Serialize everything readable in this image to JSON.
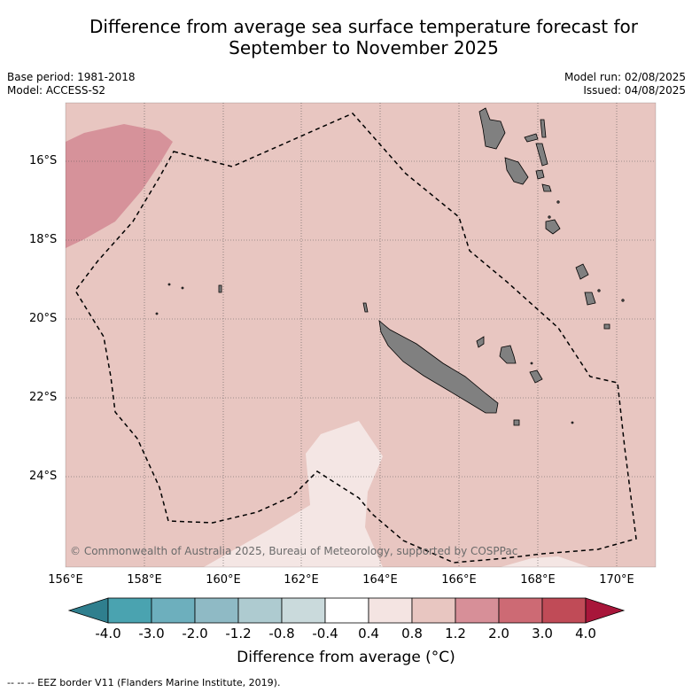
{
  "title_line1": "Difference from average sea surface temperature forecast for",
  "title_line2": "September to November 2025",
  "meta": {
    "base_period": "Base period: 1981-2018",
    "model": "Model: ACCESS-S2",
    "model_run": "Model run: 02/08/2025",
    "issued": "Issued: 04/08/2025"
  },
  "map": {
    "lat_labels": [
      "16°S",
      "18°S",
      "20°S",
      "22°S",
      "24°S"
    ],
    "lon_labels": [
      "156°E",
      "158°E",
      "160°E",
      "162°E",
      "164°E",
      "166°E",
      "168°E",
      "170°E"
    ],
    "copyright": "© Commonwealth of Australia 2025, Bureau of Meteorology, supported by COSPPac",
    "background_anomaly_color": "#e8c6c1",
    "land_color": "#808080",
    "eez_line_style": "dashed black"
  },
  "colorbar": {
    "labels": [
      "-4.0",
      "-3.0",
      "-2.0",
      "-1.2",
      "-0.8",
      "-0.4",
      "0.4",
      "0.8",
      "1.2",
      "2.0",
      "3.0",
      "4.0"
    ],
    "colors": [
      "#2f7f8e",
      "#4aa3b0",
      "#6dafbd",
      "#8fbac5",
      "#aecbd0",
      "#cadadc",
      "#ffffff",
      "#f4e4e2",
      "#e8c6c1",
      "#d78f98",
      "#cd6a74",
      "#c04b57",
      "#a8163a"
    ],
    "title": "Difference from average (°C)"
  },
  "footnote": "--  --  -- EEZ border V11 (Flanders Marine Institute, 2019)."
}
